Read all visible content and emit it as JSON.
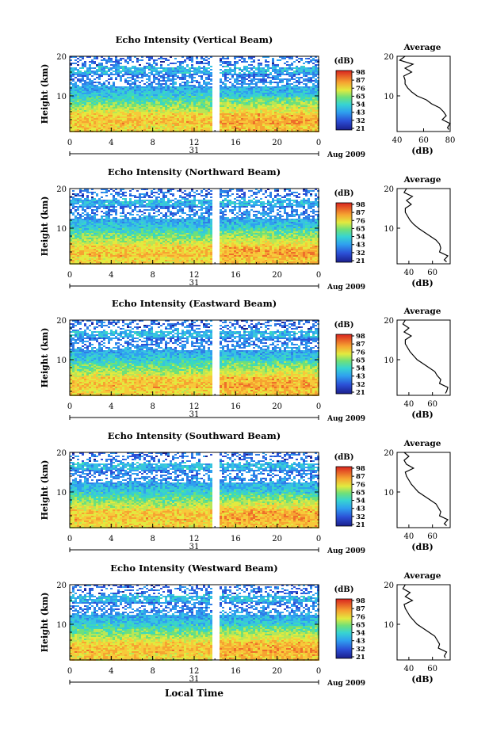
{
  "chart_data": [
    {
      "type": "heatmap",
      "title": "Echo Intensity (Vertical Beam)",
      "ylabel": "Height (km)",
      "y_ticks": [
        "20",
        "10"
      ],
      "ylim": [
        1,
        20
      ],
      "x_ticks": [
        "0",
        "4",
        "8",
        "12",
        "16",
        "20",
        "0"
      ],
      "xlim": [
        0,
        24
      ],
      "date_label": "31",
      "month_label": "Aug 2009",
      "colorbar": {
        "unit": "(dB)",
        "ticks": [
          "98",
          "87",
          "76",
          "65",
          "54",
          "43",
          "32",
          "21"
        ]
      },
      "gap_at_hour": 14,
      "profile": {
        "title": "Average",
        "xlabel": "(dB)",
        "x_ticks": [
          "40",
          "60",
          "80"
        ],
        "xlim": [
          40,
          80
        ],
        "y_ticks": [
          "20",
          "10"
        ],
        "heights_km": [
          1.5,
          2,
          3,
          4,
          5,
          6,
          7,
          8,
          9,
          10,
          11,
          12,
          13,
          14,
          15,
          16,
          17,
          18,
          19,
          20
        ],
        "values_db": [
          79,
          78,
          80,
          74,
          77,
          75,
          72,
          66,
          62,
          55,
          51,
          48,
          46,
          46,
          45,
          51,
          46,
          52,
          42,
          46
        ]
      }
    },
    {
      "type": "heatmap",
      "title": "Echo Intensity (Northward Beam)",
      "ylabel": "Height (km)",
      "y_ticks": [
        "20",
        "10"
      ],
      "ylim": [
        1,
        20
      ],
      "x_ticks": [
        "0",
        "4",
        "8",
        "12",
        "16",
        "20",
        "0"
      ],
      "xlim": [
        0,
        24
      ],
      "date_label": "31",
      "month_label": "Aug 2009",
      "colorbar": {
        "unit": "(dB)",
        "ticks": [
          "98",
          "87",
          "76",
          "65",
          "54",
          "43",
          "32",
          "21"
        ]
      },
      "gap_at_hour": 14,
      "profile": {
        "title": "Average",
        "xlabel": "(dB)",
        "x_ticks": [
          "40",
          "60"
        ],
        "xlim": [
          30,
          75
        ],
        "y_ticks": [
          "20",
          "10"
        ],
        "heights_km": [
          1.5,
          2,
          3,
          4,
          5,
          6,
          7,
          8,
          9,
          10,
          11,
          12,
          13,
          14,
          15,
          16,
          17,
          18,
          19,
          20
        ],
        "values_db": [
          72,
          70,
          73,
          66,
          67,
          66,
          63,
          58,
          53,
          48,
          44,
          41,
          39,
          37,
          37,
          42,
          38,
          43,
          36,
          38
        ]
      }
    },
    {
      "type": "heatmap",
      "title": "Echo Intensity (Eastward Beam)",
      "ylabel": "Height (km)",
      "y_ticks": [
        "20",
        "10"
      ],
      "ylim": [
        1,
        20
      ],
      "x_ticks": [
        "0",
        "4",
        "8",
        "12",
        "16",
        "20",
        "0"
      ],
      "xlim": [
        0,
        24
      ],
      "date_label": "31",
      "month_label": "Aug 2009",
      "colorbar": {
        "unit": "(dB)",
        "ticks": [
          "98",
          "87",
          "76",
          "65",
          "54",
          "43",
          "32",
          "21"
        ]
      },
      "gap_at_hour": 14,
      "profile": {
        "title": "Average",
        "xlabel": "(dB)",
        "x_ticks": [
          "40",
          "60"
        ],
        "xlim": [
          30,
          75
        ],
        "y_ticks": [
          "20",
          "10"
        ],
        "heights_km": [
          1.5,
          2,
          3,
          4,
          5,
          6,
          7,
          8,
          9,
          10,
          11,
          12,
          13,
          14,
          15,
          16,
          17,
          18,
          19,
          20
        ],
        "values_db": [
          71,
          72,
          73,
          66,
          67,
          64,
          62,
          57,
          52,
          47,
          44,
          41,
          39,
          37,
          37,
          42,
          36,
          40,
          35,
          37
        ]
      }
    },
    {
      "type": "heatmap",
      "title": "Echo Intensity (Southward Beam)",
      "ylabel": "Height (km)",
      "y_ticks": [
        "20",
        "10"
      ],
      "ylim": [
        1,
        20
      ],
      "x_ticks": [
        "0",
        "4",
        "8",
        "12",
        "16",
        "20",
        "0"
      ],
      "xlim": [
        0,
        24
      ],
      "date_label": "31",
      "month_label": "Aug 2009",
      "colorbar": {
        "unit": "(dB)",
        "ticks": [
          "98",
          "87",
          "76",
          "65",
          "54",
          "43",
          "32",
          "21"
        ]
      },
      "gap_at_hour": 14,
      "profile": {
        "title": "Average",
        "xlabel": "(dB)",
        "x_ticks": [
          "40",
          "60"
        ],
        "xlim": [
          30,
          75
        ],
        "y_ticks": [
          "20",
          "10"
        ],
        "heights_km": [
          1.5,
          2,
          3,
          4,
          5,
          6,
          7,
          8,
          9,
          10,
          11,
          12,
          13,
          14,
          15,
          16,
          17,
          18,
          19,
          20
        ],
        "values_db": [
          72,
          70,
          73,
          66,
          67,
          65,
          63,
          58,
          53,
          48,
          45,
          42,
          40,
          38,
          37,
          44,
          38,
          36,
          40,
          36
        ]
      }
    },
    {
      "type": "heatmap",
      "title": "Echo Intensity (Westward Beam)",
      "ylabel": "Height (km)",
      "y_ticks": [
        "20",
        "10"
      ],
      "ylim": [
        1,
        20
      ],
      "x_ticks": [
        "0",
        "4",
        "8",
        "12",
        "16",
        "20",
        "0"
      ],
      "xlim": [
        0,
        24
      ],
      "date_label": "31",
      "month_label": "Aug 2009",
      "colorbar": {
        "unit": "(dB)",
        "ticks": [
          "98",
          "87",
          "76",
          "65",
          "54",
          "43",
          "32",
          "21"
        ]
      },
      "gap_at_hour": 14,
      "profile": {
        "title": "Average",
        "xlabel": "(dB)",
        "x_ticks": [
          "40",
          "60"
        ],
        "xlim": [
          30,
          75
        ],
        "y_ticks": [
          "20",
          "10"
        ],
        "heights_km": [
          1.5,
          2,
          3,
          4,
          5,
          6,
          7,
          8,
          9,
          10,
          11,
          12,
          13,
          14,
          15,
          16,
          17,
          18,
          19,
          20
        ],
        "values_db": [
          71,
          70,
          72,
          65,
          66,
          64,
          62,
          57,
          52,
          47,
          44,
          41,
          39,
          37,
          36,
          43,
          37,
          41,
          35,
          37
        ]
      }
    }
  ],
  "footer": {
    "xlabel": "Local Time"
  }
}
